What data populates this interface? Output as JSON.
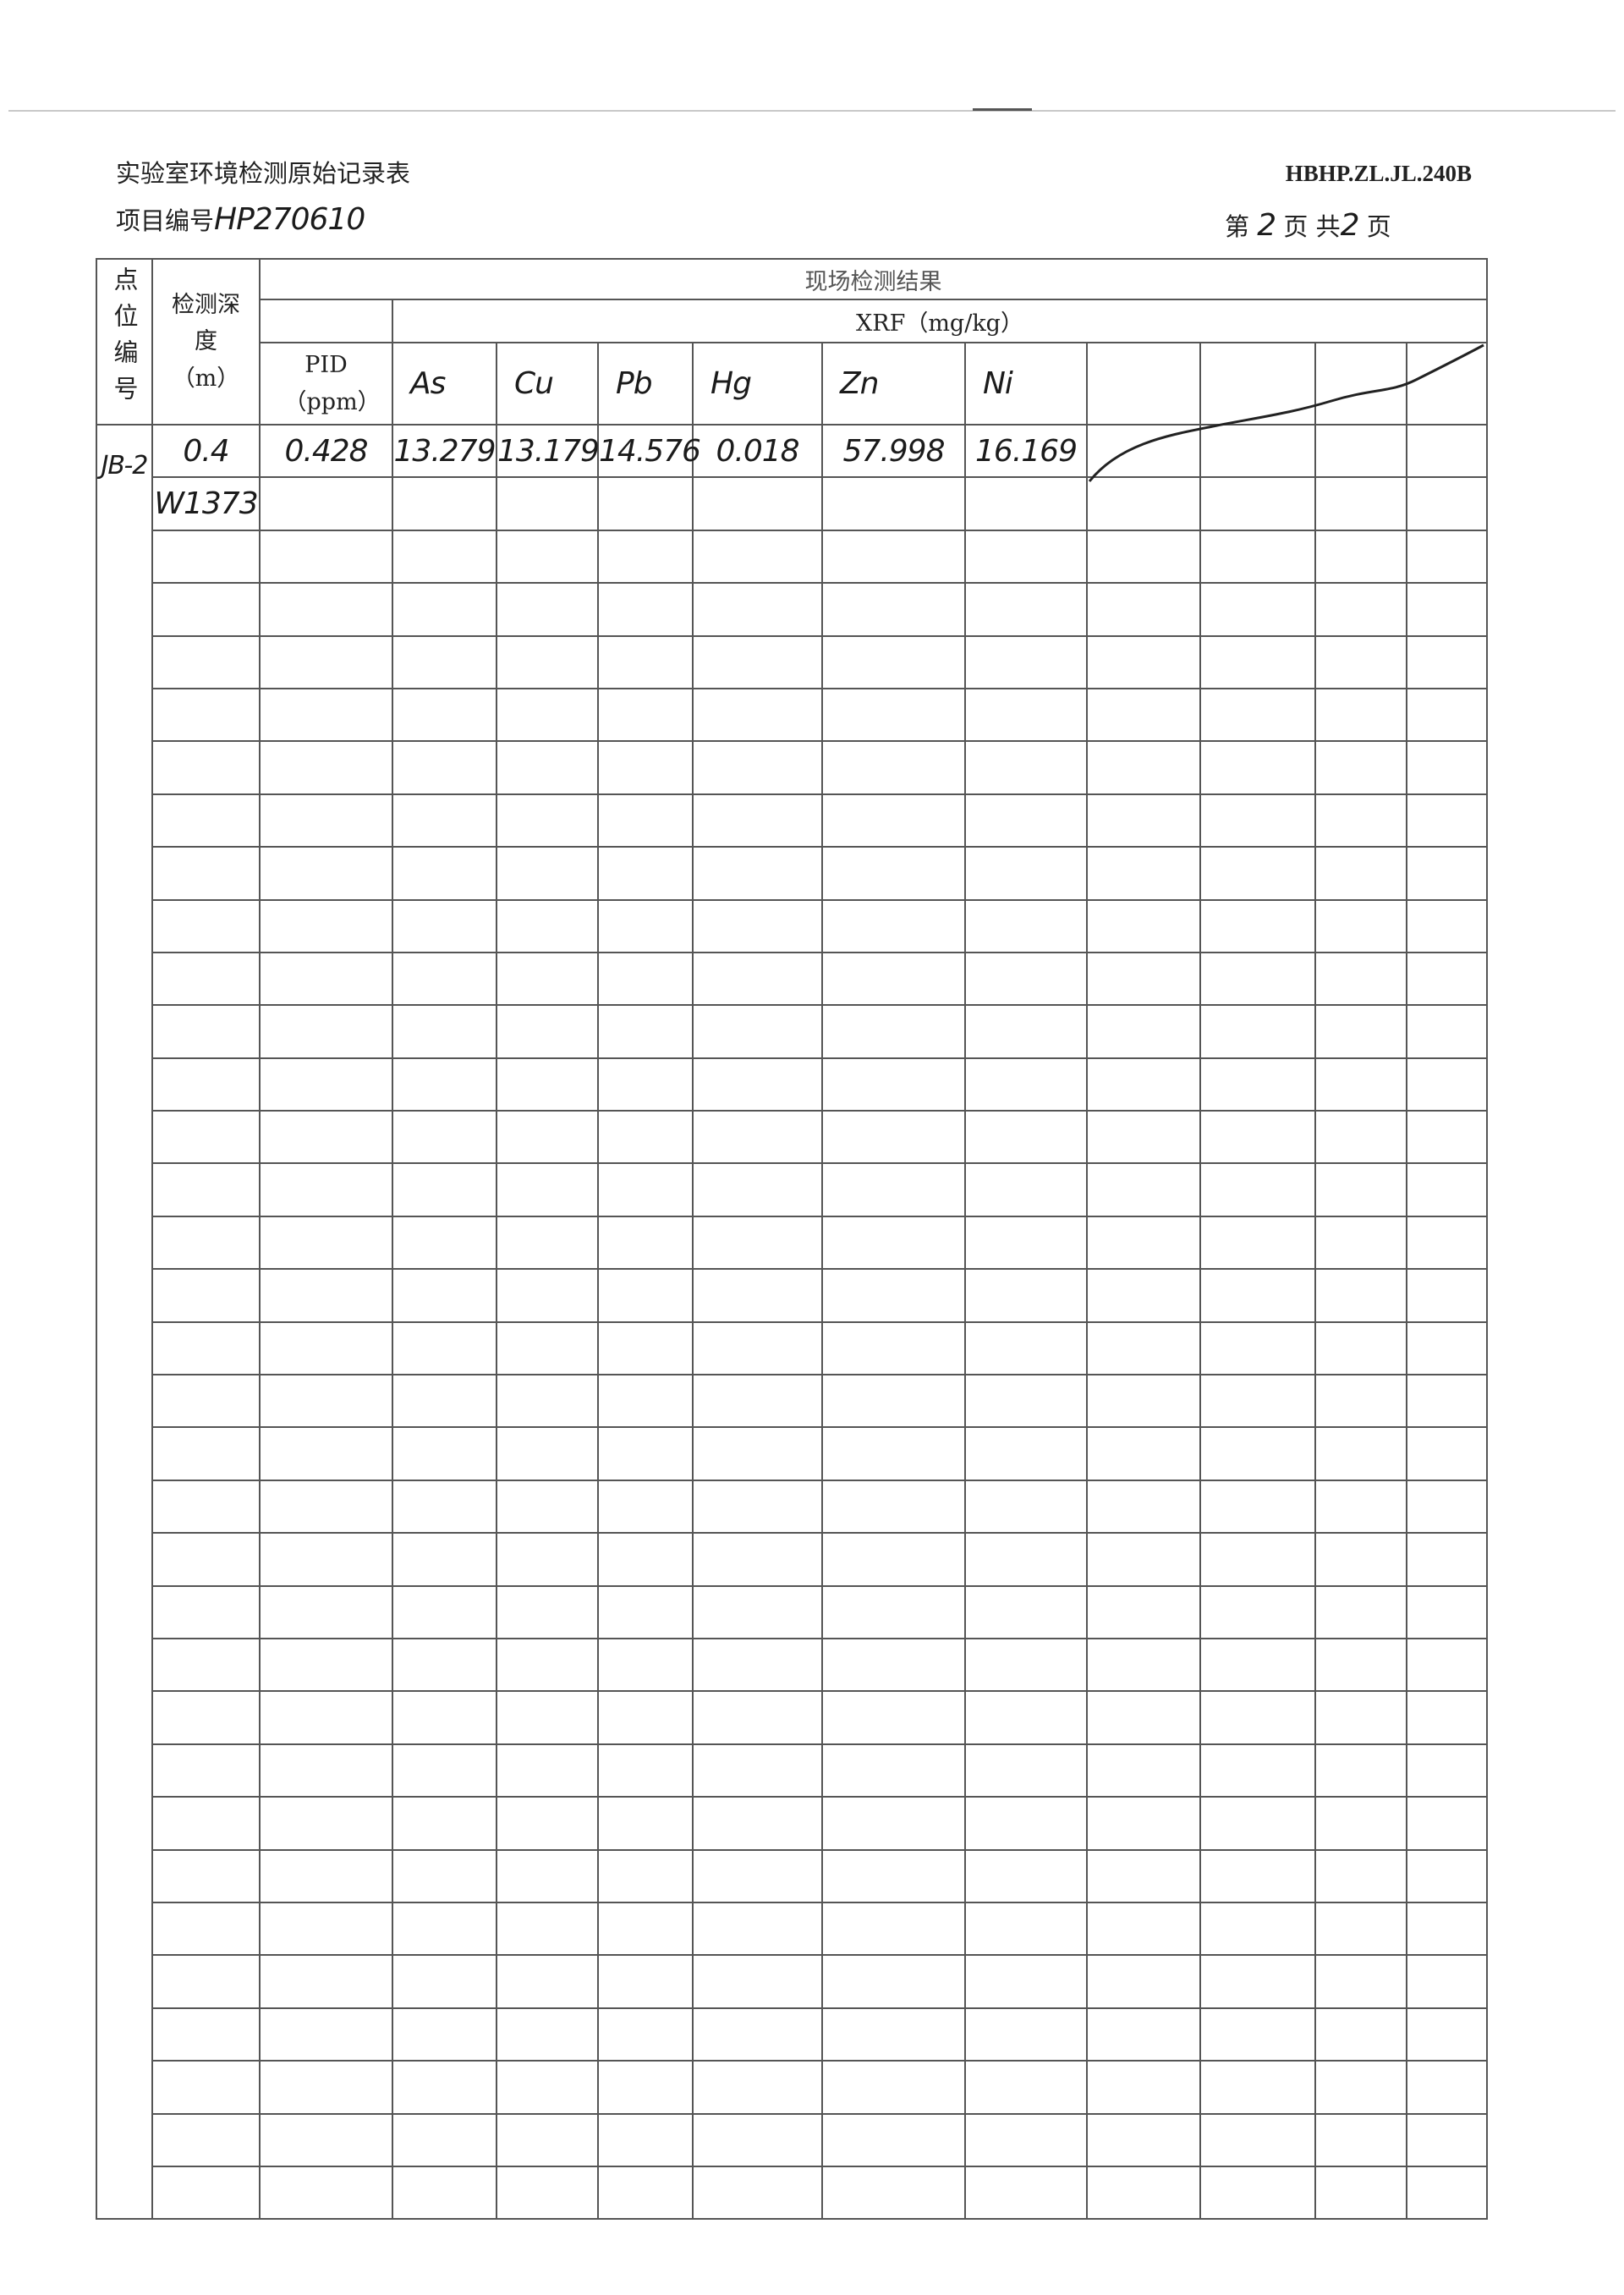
{
  "header": {
    "title": "实验室环境检测原始记录表",
    "project_label": "项目编号",
    "project_number": "HP270610",
    "form_code": "HBHP.ZL.JL.240B",
    "page_prefix": "第",
    "page_current": "2",
    "page_mid": "页 共",
    "page_total": "2",
    "page_suffix": "页"
  },
  "table": {
    "col_point": "点位编号",
    "col_depth": "检测深度（m）",
    "group_title": "现场检测结果",
    "xrf_title": "XRF（mg/kg）",
    "pid_label": "PID（ppm）",
    "element_columns": [
      "As",
      "Cu",
      "Pb",
      "Hg",
      "Zn",
      "Ni"
    ],
    "point_id": "JB-2",
    "rows": [
      {
        "depth": "0.4",
        "pid": "0.428",
        "values": [
          "13.279",
          "13.179",
          "14.576",
          "0.018",
          "57.998",
          "16.169"
        ]
      },
      {
        "depth": "W1373",
        "pid": "",
        "values": [
          "",
          "",
          "",
          "",
          "",
          ""
        ]
      }
    ],
    "total_rows": 34
  }
}
